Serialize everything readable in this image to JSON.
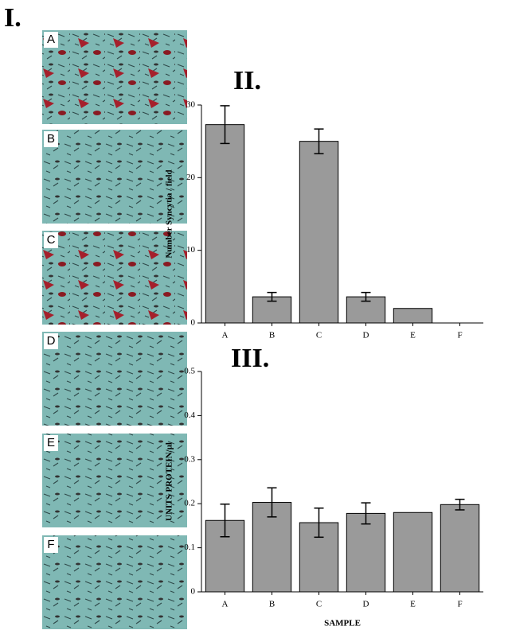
{
  "figure": {
    "panel_label": "I.",
    "images": [
      "A",
      "B",
      "C",
      "D",
      "E",
      "F"
    ]
  },
  "chart_data": [
    {
      "type": "bar",
      "title": "II.",
      "y_label": "Number Syncytia / field",
      "categories": [
        "A",
        "B",
        "C",
        "D",
        "E",
        "F"
      ],
      "values": [
        27.3,
        3.6,
        25.0,
        3.6,
        2.0,
        0
      ],
      "errors": [
        2.6,
        0.6,
        1.7,
        0.6,
        null,
        null
      ],
      "color": "#9a9a9a",
      "ylim": [
        0,
        30
      ],
      "yticks": [
        0,
        10,
        20,
        30
      ]
    },
    {
      "type": "bar",
      "title": "III.",
      "y_label": "UNITS PROTEIN/µl",
      "x_label": "SAMPLE",
      "categories": [
        "A",
        "B",
        "C",
        "D",
        "E",
        "F"
      ],
      "values": [
        0.162,
        0.203,
        0.157,
        0.178,
        0.18,
        0.198
      ],
      "errors": [
        0.037,
        0.033,
        0.033,
        0.024,
        null,
        0.012
      ],
      "color": "#9a9a9a",
      "ylim": [
        0,
        0.5
      ],
      "yticks": [
        0,
        0.1,
        0.2,
        0.3,
        0.4,
        0.5
      ]
    }
  ]
}
